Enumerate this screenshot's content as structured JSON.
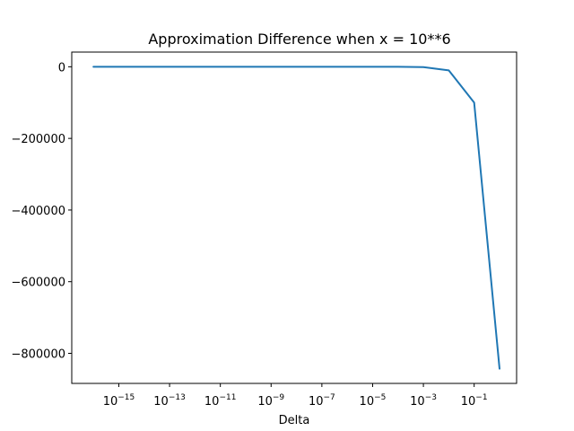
{
  "chart_data": {
    "type": "line",
    "title": "Approximation Difference when x = 10**6",
    "xlabel": "Delta",
    "ylabel": "",
    "xscale": "log",
    "x_tick_base": "10",
    "x_tick_exponents": [
      "−15",
      "−13",
      "−11",
      "−9",
      "−7",
      "−5",
      "−3",
      "−1"
    ],
    "x_tick_values": [
      -15,
      -13,
      -11,
      -9,
      -7,
      -5,
      -3,
      -1
    ],
    "y_tick_labels": [
      "0",
      "−200000",
      "−400000",
      "−600000",
      "−800000"
    ],
    "y_tick_values": [
      0,
      -200000,
      -400000,
      -600000,
      -800000
    ],
    "xlim": [
      1.4e-17,
      4.7
    ],
    "ylim": [
      -884000,
      41000
    ],
    "grid": false,
    "legend": "none",
    "series": [
      {
        "color": "#1f77b4",
        "x": [
          1e-16,
          1e-15,
          1e-14,
          1e-13,
          1e-12,
          1e-11,
          1e-10,
          1e-09,
          1e-08,
          1e-07,
          1e-06,
          1e-05,
          0.0001,
          0.001,
          0.01,
          0.1,
          1
        ],
        "y": [
          0,
          0,
          0,
          0,
          0,
          0,
          0,
          0,
          0,
          0,
          0,
          0,
          -100,
          -1000,
          -10000,
          -100000,
          -843000
        ]
      }
    ]
  }
}
